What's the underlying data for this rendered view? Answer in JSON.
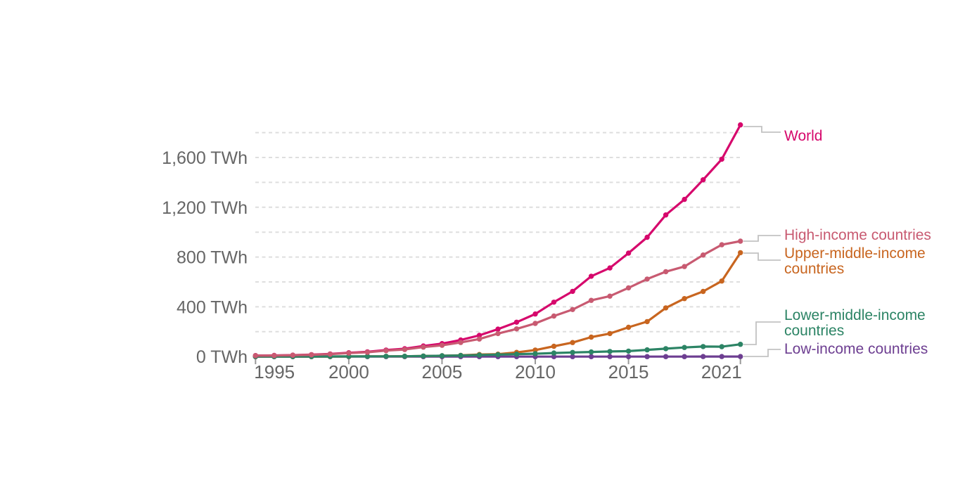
{
  "page": {
    "background": "#ffffff"
  },
  "axes": {
    "y_tick_labels": [
      "0 TWh",
      "400 TWh",
      "800 TWh",
      "1,200 TWh",
      "1,600 TWh"
    ],
    "y_tick_values": [
      0,
      400,
      800,
      1200,
      1600
    ],
    "x_tick_labels": [
      "1995",
      "2000",
      "2005",
      "2010",
      "2015",
      "2021"
    ],
    "x_tick_years": [
      1995,
      2000,
      2005,
      2010,
      2015,
      2021
    ]
  },
  "colors": {
    "gridline": "#dedede",
    "axis_text": "#666666",
    "tick_mark": "#999999",
    "legend_connector": "#c2c2c2"
  },
  "chart_data": {
    "type": "line",
    "title": "",
    "unit": "TWh",
    "ylabel": "",
    "ylim": [
      0,
      1900
    ],
    "grid": true,
    "gridline_step": 200,
    "legend_position": "right",
    "x": [
      1995,
      1996,
      1997,
      1998,
      1999,
      2000,
      2001,
      2002,
      2003,
      2004,
      2005,
      2006,
      2007,
      2008,
      2009,
      2010,
      2011,
      2012,
      2013,
      2014,
      2015,
      2016,
      2017,
      2018,
      2019,
      2020,
      2021
    ],
    "series": [
      {
        "name": "World",
        "color": "#d6086c",
        "values": [
          8.3,
          9.5,
          12.1,
          16,
          21.3,
          31.2,
          38.5,
          52.6,
          63.2,
          85.3,
          104.3,
          133.3,
          170.8,
          221.1,
          276.2,
          342.3,
          437.4,
          524.3,
          646,
          712.4,
          831.8,
          958.6,
          1138.3,
          1263.3,
          1420.9,
          1586.5,
          1861.9
        ]
      },
      {
        "name": "High-income countries",
        "color": "#c85a71",
        "values": [
          7.7,
          8.7,
          11.1,
          14.7,
          19.6,
          28.5,
          35.1,
          48,
          57.1,
          76,
          90.7,
          113.8,
          141.5,
          185.5,
          222.7,
          266.8,
          325.8,
          378,
          451.7,
          486.1,
          552.5,
          623,
          682.7,
          723.6,
          816.2,
          899,
          927.5
        ]
      },
      {
        "name": "Upper-middle-income countries",
        "color": "#c8651f",
        "values": [
          0.2,
          0.3,
          0.4,
          0.5,
          0.7,
          1.1,
          1.5,
          2.3,
          3.1,
          4.8,
          6.7,
          10.4,
          16.8,
          20,
          34,
          52.4,
          83,
          113,
          156.7,
          185.2,
          235.4,
          281.5,
          391.4,
          466.1,
          523.5,
          607.5,
          834.9
        ]
      },
      {
        "name": "Lower-middle-income countries",
        "color": "#2c8465",
        "values": [
          0.4,
          0.5,
          0.6,
          0.8,
          1,
          1.6,
          1.9,
          2.3,
          3,
          4.5,
          6.9,
          9.1,
          12.5,
          15.6,
          19.5,
          23.1,
          28.6,
          33.2,
          37.5,
          41,
          43.8,
          54,
          64.1,
          73.4,
          80.9,
          79.6,
          98.7
        ]
      },
      {
        "name": "Low-income countries",
        "color": "#6d3e91",
        "values": [
          0,
          0,
          0,
          0,
          0,
          0,
          0,
          0,
          0,
          0,
          0,
          0,
          0,
          0,
          0,
          0,
          0,
          0.1,
          0.1,
          0.1,
          0.1,
          0.1,
          0.1,
          0.2,
          0.3,
          0.4,
          0.8
        ]
      }
    ]
  }
}
